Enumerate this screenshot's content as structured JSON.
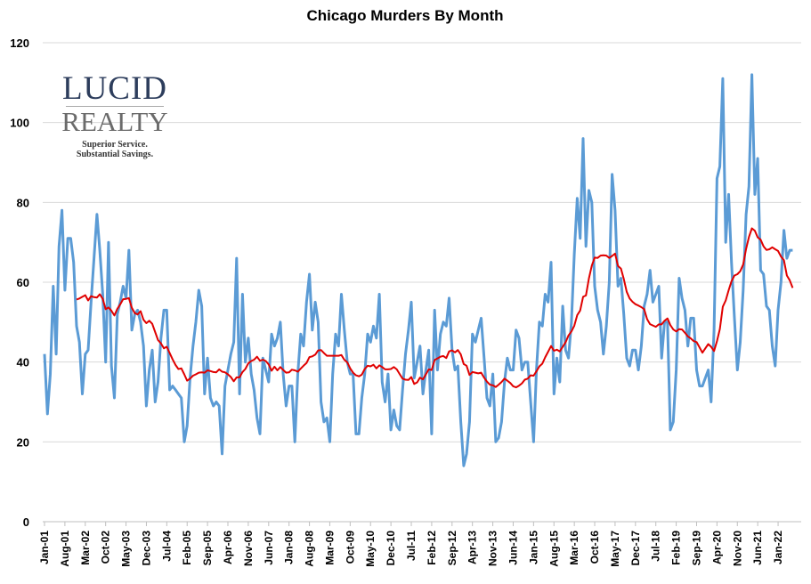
{
  "chart_data": {
    "type": "line",
    "title": "Chicago Murders By Month",
    "xlabel": "",
    "ylabel": "",
    "ylim": [
      0,
      120
    ],
    "yticks": [
      0,
      20,
      40,
      60,
      80,
      100,
      120
    ],
    "grid": true,
    "legend": "none",
    "x_start": "Jan-01",
    "x_tick_labels": [
      "Jan-01",
      "Aug-01",
      "Mar-02",
      "Oct-02",
      "May-03",
      "Dec-03",
      "Jul-04",
      "Feb-05",
      "Sep-05",
      "Apr-06",
      "Nov-06",
      "Jun-07",
      "Jan-08",
      "Aug-08",
      "Mar-09",
      "Oct-09",
      "May-10",
      "Dec-10",
      "Jul-11",
      "Feb-12",
      "Sep-12",
      "Apr-13",
      "Nov-13",
      "Jun-14",
      "Jan-15",
      "Aug-15",
      "Mar-16",
      "Oct-16",
      "May-17",
      "Dec-17",
      "Jul-18",
      "Feb-19",
      "Sep-19",
      "Apr-20",
      "Nov-20",
      "Jun-21",
      "Jan-22"
    ],
    "x_tick_every_months": 7,
    "series": [
      {
        "color": "#5b9bd5",
        "values": [
          42,
          27,
          37,
          59,
          42,
          69,
          78,
          58,
          71,
          71,
          65,
          49,
          45,
          32,
          42,
          43,
          55,
          66,
          77,
          68,
          57,
          40,
          70,
          39,
          31,
          52,
          55,
          59,
          56,
          68,
          48,
          52,
          53,
          50,
          44,
          29,
          38,
          43,
          30,
          35,
          46,
          53,
          53,
          33,
          34,
          33,
          32,
          31,
          20,
          24,
          36,
          44,
          50,
          58,
          54,
          32,
          41,
          31,
          29,
          30,
          29,
          17,
          34,
          38,
          42,
          45,
          66,
          32,
          57,
          40,
          46,
          37,
          33,
          26,
          22,
          41,
          38,
          35,
          47,
          44,
          46,
          50,
          37,
          29,
          34,
          34,
          20,
          37,
          47,
          44,
          55,
          62,
          48,
          55,
          50,
          30,
          25,
          26,
          20,
          37,
          47,
          44,
          57,
          48,
          40,
          37,
          37,
          22,
          22,
          31,
          37,
          47,
          45,
          49,
          46,
          57,
          35,
          30,
          37,
          23,
          28,
          24,
          23,
          33,
          42,
          48,
          55,
          36,
          40,
          44,
          32,
          38,
          43,
          22,
          53,
          38,
          47,
          50,
          49,
          56,
          43,
          38,
          39,
          25,
          14,
          17,
          25,
          47,
          45,
          48,
          51,
          41,
          31,
          29,
          37,
          20,
          21,
          25,
          35,
          41,
          38,
          38,
          48,
          46,
          38,
          40,
          40,
          30,
          20,
          38,
          50,
          49,
          57,
          55,
          65,
          32,
          41,
          35,
          54,
          43,
          41,
          50,
          67,
          81,
          71,
          96,
          69,
          83,
          80,
          59,
          53,
          50,
          42,
          49,
          60,
          87,
          78,
          59,
          61,
          52,
          41,
          39,
          43,
          43,
          38,
          44,
          54,
          57,
          63,
          55,
          57,
          59,
          41,
          50,
          50,
          23,
          25,
          38,
          61,
          56,
          53,
          44,
          51,
          51,
          38,
          34,
          34,
          36,
          38,
          30,
          48,
          86,
          89,
          111,
          70,
          82,
          65,
          51,
          38,
          45,
          58,
          77,
          84,
          112,
          82,
          91,
          63,
          62,
          54,
          53,
          44,
          39,
          53,
          60,
          73,
          66,
          68,
          68
        ]
      }
    ],
    "trendline": {
      "type": "moving-average",
      "period": 12,
      "color": "#e00000"
    }
  },
  "logo": {
    "line1": "LUCID",
    "line2": "REALTY",
    "tagline1": "Superior Service.",
    "tagline2": "Substantial Savings."
  }
}
